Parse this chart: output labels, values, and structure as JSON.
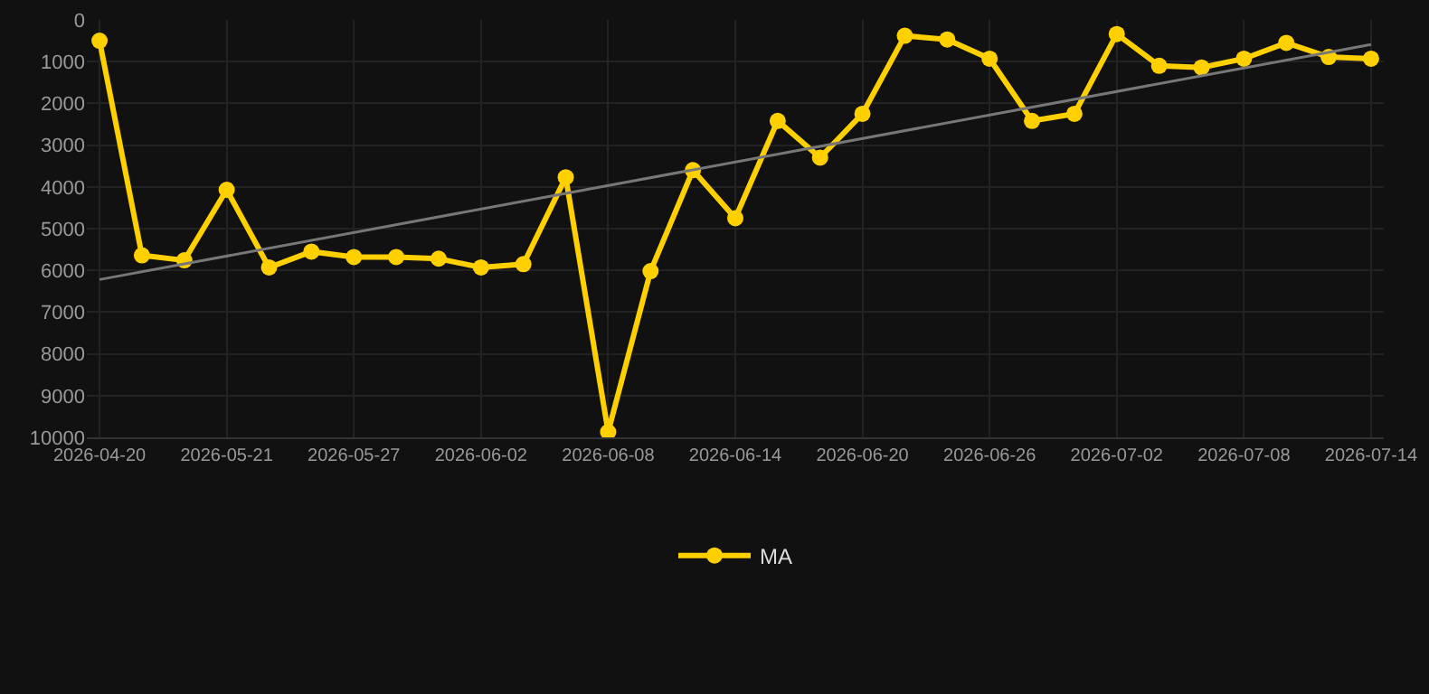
{
  "chart_data": {
    "type": "line",
    "categories": [
      "2026-04-20",
      null,
      null,
      "2026-05-21",
      null,
      null,
      "2026-05-27",
      null,
      null,
      "2026-06-02",
      null,
      null,
      "2026-06-08",
      null,
      null,
      "2026-06-14",
      null,
      null,
      "2026-06-20",
      null,
      null,
      "2026-06-26",
      null,
      null,
      "2026-07-02",
      null,
      null,
      "2026-07-08",
      null,
      null,
      "2026-07-14"
    ],
    "series": [
      {
        "name": "MA",
        "color": "#ffd000",
        "marker": "circle",
        "values": [
          500,
          5640,
          5760,
          4070,
          5930,
          5550,
          5680,
          5680,
          5720,
          5930,
          5850,
          3770,
          9870,
          6020,
          3600,
          4750,
          2420,
          3300,
          2250,
          380,
          470,
          930,
          2420,
          2250,
          340,
          1100,
          1140,
          930,
          550,
          890,
          930
        ]
      },
      {
        "color": "#777777",
        "marker": "none",
        "values": [
          6220,
          null,
          null,
          null,
          null,
          null,
          null,
          null,
          null,
          null,
          null,
          null,
          null,
          null,
          null,
          null,
          null,
          null,
          null,
          null,
          null,
          null,
          null,
          null,
          null,
          null,
          null,
          null,
          null,
          null,
          590
        ]
      }
    ],
    "ylim": [
      10000,
      0
    ],
    "yticks": [
      0,
      1000,
      2000,
      3000,
      4000,
      5000,
      6000,
      7000,
      8000,
      9000,
      10000
    ],
    "grid": true,
    "legend": "bottom"
  }
}
